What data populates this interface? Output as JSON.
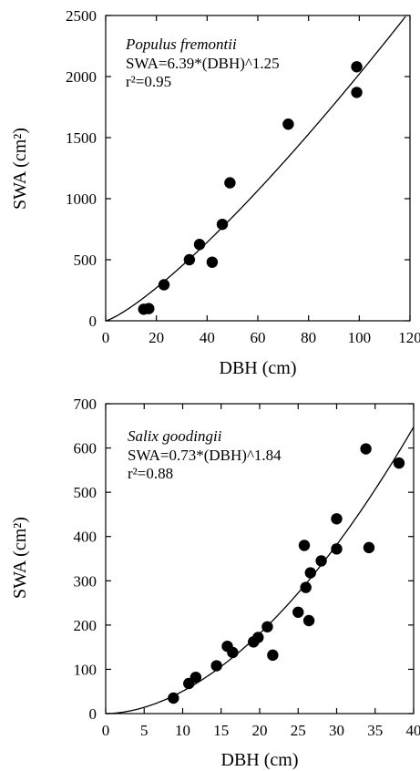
{
  "chart_data": [
    {
      "type": "scatter",
      "xlabel": "DBH (cm)",
      "ylabel": "SWA (cm²)",
      "xlim": [
        0,
        120
      ],
      "ylim": [
        0,
        2500
      ],
      "xticks": [
        0,
        20,
        40,
        60,
        80,
        100,
        120
      ],
      "yticks": [
        0,
        500,
        1000,
        1500,
        2000,
        2500
      ],
      "xtick_labels": [
        "0",
        "20",
        "40",
        "60",
        "80",
        "100",
        "120"
      ],
      "ytick_labels": [
        "0",
        "500",
        "1000",
        "1500",
        "2000",
        "2500"
      ],
      "annotation": {
        "species": "Populus fremontii",
        "equation": "SWA=6.39*(DBH)^1.25",
        "r2": "r²=0.95"
      },
      "fit": {
        "a": 6.39,
        "b": 1.25
      },
      "points": [
        {
          "x": 15,
          "y": 95
        },
        {
          "x": 17,
          "y": 100
        },
        {
          "x": 23,
          "y": 295
        },
        {
          "x": 33,
          "y": 500
        },
        {
          "x": 37,
          "y": 625
        },
        {
          "x": 42,
          "y": 480
        },
        {
          "x": 46,
          "y": 790
        },
        {
          "x": 49,
          "y": 1130
        },
        {
          "x": 72,
          "y": 1610
        },
        {
          "x": 99,
          "y": 2080
        },
        {
          "x": 99,
          "y": 1870
        }
      ]
    },
    {
      "type": "scatter",
      "xlabel": "DBH (cm)",
      "ylabel": "SWA (cm²)",
      "xlim": [
        0,
        40
      ],
      "ylim": [
        0,
        700
      ],
      "xticks": [
        0,
        5,
        10,
        15,
        20,
        25,
        30,
        35,
        40
      ],
      "yticks": [
        0,
        100,
        200,
        300,
        400,
        500,
        600,
        700
      ],
      "xtick_labels": [
        "0",
        "5",
        "10",
        "15",
        "20",
        "25",
        "30",
        "35",
        "40"
      ],
      "ytick_labels": [
        "0",
        "100",
        "200",
        "300",
        "400",
        "500",
        "600",
        "700"
      ],
      "annotation": {
        "species": "Salix goodingii",
        "equation": "SWA=0.73*(DBH)^1.84",
        "r2": "r²=0.88"
      },
      "fit": {
        "a": 0.73,
        "b": 1.84
      },
      "points": [
        {
          "x": 8.8,
          "y": 35
        },
        {
          "x": 10.8,
          "y": 68
        },
        {
          "x": 11.7,
          "y": 82
        },
        {
          "x": 14.4,
          "y": 108
        },
        {
          "x": 15.8,
          "y": 152
        },
        {
          "x": 16.5,
          "y": 138
        },
        {
          "x": 19.2,
          "y": 162
        },
        {
          "x": 19.8,
          "y": 172
        },
        {
          "x": 21.0,
          "y": 196
        },
        {
          "x": 21.7,
          "y": 132
        },
        {
          "x": 25.0,
          "y": 229
        },
        {
          "x": 25.8,
          "y": 380
        },
        {
          "x": 26.0,
          "y": 285
        },
        {
          "x": 26.4,
          "y": 210
        },
        {
          "x": 26.6,
          "y": 318
        },
        {
          "x": 28.0,
          "y": 345
        },
        {
          "x": 30.0,
          "y": 440
        },
        {
          "x": 30.0,
          "y": 372
        },
        {
          "x": 33.8,
          "y": 598
        },
        {
          "x": 34.2,
          "y": 375
        },
        {
          "x": 38.1,
          "y": 566
        }
      ]
    }
  ]
}
